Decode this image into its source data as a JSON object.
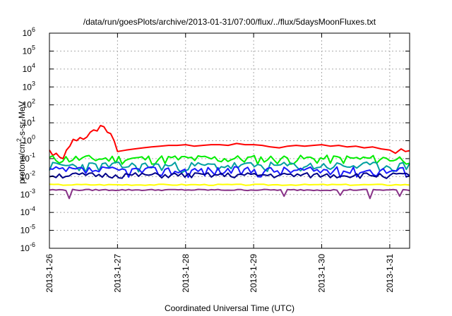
{
  "chart_data": {
    "type": "line",
    "title": "/data/run/goesPlots/archive/2013-01-31/07:00/flux/../flux/5daysMoonFluxes.txt",
    "xlabel": "Coordinated Universal Time (UTC)",
    "ylabel": {
      "main": "protons/cm",
      "sup": "2",
      "rest": "-s-sr-MeV"
    },
    "y_scale": "log",
    "ylim": [
      1e-06,
      1000000.0
    ],
    "y_ticks": [
      {
        "value": 1e-06,
        "mant": "10",
        "exp": "-6"
      },
      {
        "value": 1e-05,
        "mant": "10",
        "exp": "-5"
      },
      {
        "value": 0.0001,
        "mant": "10",
        "exp": "-4"
      },
      {
        "value": 0.001,
        "mant": "10",
        "exp": "-3"
      },
      {
        "value": 0.01,
        "mant": "10",
        "exp": "-2"
      },
      {
        "value": 0.1,
        "mant": "10",
        "exp": "-1"
      },
      {
        "value": 1.0,
        "mant": "10",
        "exp": "0"
      },
      {
        "value": 10.0,
        "mant": "10",
        "exp": "1"
      },
      {
        "value": 100.0,
        "mant": "10",
        "exp": "2"
      },
      {
        "value": 1000.0,
        "mant": "10",
        "exp": "3"
      },
      {
        "value": 10000.0,
        "mant": "10",
        "exp": "4"
      },
      {
        "value": 100000.0,
        "mant": "10",
        "exp": "5"
      },
      {
        "value": 1000000.0,
        "mant": "10",
        "exp": "6"
      }
    ],
    "xlim": [
      "2013-01-26T00:00",
      "2013-01-31T07:00"
    ],
    "x_ticks": [
      "2013-1-26",
      "2013-1-27",
      "2013-1-28",
      "2013-1-29",
      "2013-1-30",
      "2013-1-31"
    ],
    "x_tick_dates": [
      "2013-01-26",
      "2013-01-27",
      "2013-01-28",
      "2013-01-29",
      "2013-01-30",
      "2013-01-31"
    ],
    "grid": true,
    "series": [
      {
        "color": "#ff0000",
        "x": [
          "2013-01-26T00:00",
          "2013-01-26T01:12",
          "2013-01-26T02:24",
          "2013-01-26T03:36",
          "2013-01-26T04:48",
          "2013-01-26T06:00",
          "2013-01-26T07:12",
          "2013-01-26T08:24",
          "2013-01-26T09:36",
          "2013-01-26T10:48",
          "2013-01-26T12:00",
          "2013-01-26T13:12",
          "2013-01-26T14:24",
          "2013-01-26T15:36",
          "2013-01-26T16:48",
          "2013-01-26T18:00",
          "2013-01-26T19:12",
          "2013-01-26T20:24",
          "2013-01-26T21:36",
          "2013-01-26T22:48",
          "2013-01-27T00:00",
          "2013-01-27T03:00",
          "2013-01-27T06:00",
          "2013-01-27T09:00",
          "2013-01-27T12:00",
          "2013-01-27T15:00",
          "2013-01-27T18:00",
          "2013-01-27T21:00",
          "2013-01-28T00:00",
          "2013-01-28T03:00",
          "2013-01-28T06:00",
          "2013-01-28T09:00",
          "2013-01-28T12:00",
          "2013-01-28T15:00",
          "2013-01-28T18:00",
          "2013-01-28T21:00",
          "2013-01-29T00:00",
          "2013-01-29T03:00",
          "2013-01-29T06:00",
          "2013-01-29T09:00",
          "2013-01-29T12:00",
          "2013-01-29T15:00",
          "2013-01-29T18:00",
          "2013-01-29T21:00",
          "2013-01-30T00:00",
          "2013-01-30T03:00",
          "2013-01-30T06:00",
          "2013-01-30T09:00",
          "2013-01-30T12:00",
          "2013-01-30T15:00",
          "2013-01-30T18:00",
          "2013-01-30T21:00",
          "2013-01-31T00:00",
          "2013-01-31T02:00",
          "2013-01-31T04:00",
          "2013-01-31T05:30",
          "2013-01-31T07:00"
        ],
        "values": [
          0.3,
          0.15,
          0.2,
          0.12,
          0.1,
          0.3,
          0.5,
          1.2,
          1.0,
          1.5,
          1.2,
          1.6,
          3.0,
          4.0,
          3.5,
          7.0,
          6.0,
          3.0,
          2.5,
          1.0,
          0.25,
          0.3,
          0.35,
          0.4,
          0.45,
          0.5,
          0.55,
          0.55,
          0.6,
          0.5,
          0.55,
          0.6,
          0.6,
          0.55,
          0.7,
          0.6,
          0.6,
          0.55,
          0.45,
          0.4,
          0.5,
          0.55,
          0.5,
          0.55,
          0.6,
          0.5,
          0.55,
          0.45,
          0.5,
          0.4,
          0.45,
          0.35,
          0.3,
          0.2,
          0.35,
          0.25,
          0.28
        ]
      },
      {
        "color": "#00ee00",
        "base": 0.1,
        "amp": 0.55,
        "seed": 11,
        "x_start": "2013-01-26T00:00",
        "x_end": "2013-01-31T07:00",
        "points": 110
      },
      {
        "color": "#00a0a0",
        "base": 0.04,
        "amp": 0.6,
        "seed": 23,
        "x_start": "2013-01-26T00:00",
        "x_end": "2013-01-31T07:00",
        "points": 110
      },
      {
        "color": "#1a1aff",
        "base": 0.022,
        "amp": 0.6,
        "seed": 37,
        "x_start": "2013-01-26T00:00",
        "x_end": "2013-01-31T07:00",
        "points": 110
      },
      {
        "color": "#000088",
        "base": 0.012,
        "amp": 0.35,
        "seed": 51,
        "x_start": "2013-01-26T00:00",
        "x_end": "2013-01-31T07:00",
        "points": 110
      },
      {
        "color": "#ffff00",
        "base": 0.0035,
        "amp": 0.08,
        "seed": 67,
        "x_start": "2013-01-26T00:00",
        "x_end": "2013-01-31T07:00",
        "points": 80
      },
      {
        "color": "#883388",
        "base": 0.0018,
        "amp": 0.08,
        "seed": 79,
        "x_start": "2013-01-26T00:00",
        "x_end": "2013-01-31T07:00",
        "points": 110,
        "dips": [
          [
            "2013-01-26T07:12",
            0.0006
          ],
          [
            "2013-01-29T11:00",
            0.0008
          ],
          [
            "2013-01-30T06:00",
            0.0009
          ],
          [
            "2013-01-30T17:00",
            0.0006
          ],
          [
            "2013-01-31T03:00",
            0.0008
          ]
        ]
      }
    ]
  }
}
